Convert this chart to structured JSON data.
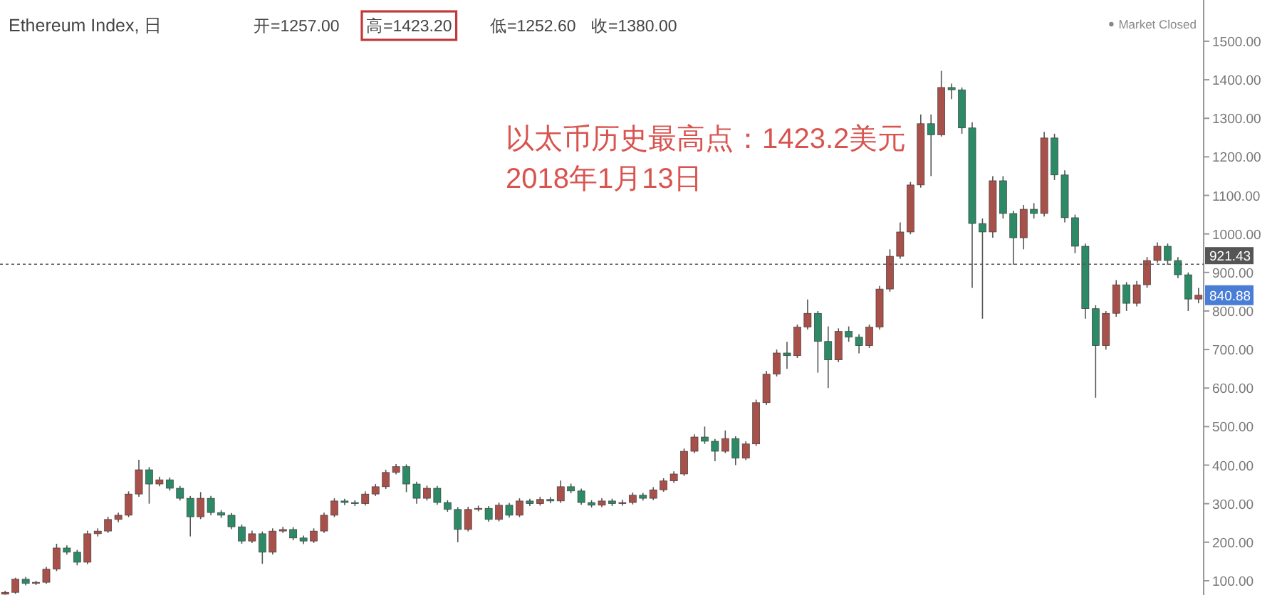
{
  "chart_data": {
    "type": "candlestick",
    "title": "Ethereum Index, 日",
    "categories": [
      null,
      null,
      null,
      null,
      null,
      null,
      null,
      null,
      null,
      null,
      null,
      null,
      null,
      null,
      null,
      null,
      null,
      null,
      null,
      null,
      null,
      null,
      null,
      null,
      null,
      null,
      null,
      null,
      null,
      null,
      null,
      null,
      null,
      null,
      null,
      null,
      null,
      null,
      null,
      null,
      null,
      null,
      null,
      null,
      null,
      null,
      null,
      null,
      null,
      null,
      null,
      null,
      null,
      null,
      null,
      null,
      null,
      null,
      null,
      null,
      null,
      null,
      null,
      null,
      null,
      null,
      null,
      null,
      null,
      null,
      null,
      null,
      null,
      null,
      null,
      null,
      null,
      null,
      null,
      null,
      null,
      null,
      null,
      null,
      null,
      null,
      null,
      null,
      null,
      null,
      null,
      null,
      null,
      null,
      null,
      null,
      null,
      null,
      null,
      null,
      null,
      null,
      null,
      null,
      null,
      null,
      null,
      null,
      null,
      null,
      null,
      null,
      null,
      null,
      null,
      null,
      null
    ],
    "ohlc": [
      [
        65,
        74,
        64,
        70
      ],
      [
        70,
        108,
        66,
        104
      ],
      [
        104,
        110,
        88,
        93
      ],
      [
        93,
        100,
        89,
        96
      ],
      [
        96,
        136,
        92,
        130
      ],
      [
        130,
        196,
        125,
        185
      ],
      [
        185,
        192,
        168,
        174
      ],
      [
        174,
        180,
        140,
        148
      ],
      [
        148,
        230,
        143,
        222
      ],
      [
        222,
        236,
        215,
        229
      ],
      [
        229,
        266,
        224,
        259
      ],
      [
        259,
        277,
        252,
        270
      ],
      [
        270,
        332,
        265,
        325
      ],
      [
        325,
        414,
        318,
        388
      ],
      [
        388,
        395,
        300,
        351
      ],
      [
        351,
        370,
        345,
        362
      ],
      [
        362,
        368,
        334,
        340
      ],
      [
        340,
        346,
        308,
        314
      ],
      [
        314,
        320,
        215,
        266
      ],
      [
        266,
        330,
        260,
        314
      ],
      [
        314,
        320,
        270,
        277
      ],
      [
        277,
        283,
        263,
        270
      ],
      [
        270,
        276,
        234,
        240
      ],
      [
        240,
        246,
        196,
        203
      ],
      [
        203,
        230,
        198,
        222
      ],
      [
        222,
        228,
        144,
        174
      ],
      [
        174,
        236,
        168,
        229
      ],
      [
        229,
        240,
        224,
        233
      ],
      [
        233,
        239,
        205,
        211
      ],
      [
        211,
        217,
        195,
        203
      ],
      [
        203,
        236,
        198,
        229
      ],
      [
        229,
        277,
        224,
        270
      ],
      [
        270,
        314,
        265,
        307
      ],
      [
        307,
        313,
        296,
        303
      ],
      [
        303,
        309,
        294,
        300
      ],
      [
        300,
        332,
        295,
        325
      ],
      [
        325,
        351,
        320,
        344
      ],
      [
        344,
        388,
        338,
        381
      ],
      [
        381,
        403,
        376,
        396
      ],
      [
        396,
        402,
        330,
        351
      ],
      [
        351,
        357,
        300,
        314
      ],
      [
        314,
        347,
        308,
        340
      ],
      [
        340,
        346,
        297,
        303
      ],
      [
        303,
        309,
        279,
        285
      ],
      [
        285,
        291,
        200,
        233
      ],
      [
        233,
        292,
        228,
        285
      ],
      [
        285,
        295,
        280,
        288
      ],
      [
        288,
        294,
        253,
        259
      ],
      [
        259,
        303,
        254,
        296
      ],
      [
        296,
        302,
        264,
        270
      ],
      [
        270,
        314,
        265,
        307
      ],
      [
        307,
        313,
        294,
        300
      ],
      [
        300,
        318,
        295,
        311
      ],
      [
        311,
        317,
        301,
        307
      ],
      [
        307,
        360,
        302,
        344
      ],
      [
        344,
        352,
        327,
        333
      ],
      [
        333,
        339,
        297,
        303
      ],
      [
        303,
        309,
        290,
        296
      ],
      [
        296,
        314,
        291,
        307
      ],
      [
        307,
        313,
        294,
        300
      ],
      [
        300,
        310,
        295,
        303
      ],
      [
        303,
        329,
        298,
        322
      ],
      [
        322,
        328,
        308,
        314
      ],
      [
        314,
        343,
        309,
        336
      ],
      [
        336,
        366,
        331,
        359
      ],
      [
        359,
        384,
        354,
        377
      ],
      [
        377,
        443,
        372,
        436
      ],
      [
        436,
        480,
        431,
        473
      ],
      [
        473,
        500,
        455,
        462
      ],
      [
        462,
        468,
        410,
        436
      ],
      [
        436,
        490,
        431,
        469
      ],
      [
        469,
        475,
        400,
        418
      ],
      [
        418,
        462,
        413,
        455
      ],
      [
        455,
        570,
        450,
        562
      ],
      [
        562,
        645,
        556,
        636
      ],
      [
        636,
        700,
        630,
        691
      ],
      [
        691,
        720,
        650,
        684
      ],
      [
        684,
        765,
        678,
        758
      ],
      [
        758,
        830,
        752,
        794
      ],
      [
        794,
        800,
        640,
        721
      ],
      [
        721,
        760,
        600,
        673
      ],
      [
        673,
        755,
        667,
        747
      ],
      [
        747,
        760,
        720,
        732
      ],
      [
        732,
        740,
        690,
        710
      ],
      [
        710,
        765,
        704,
        758
      ],
      [
        758,
        865,
        752,
        857
      ],
      [
        857,
        960,
        850,
        942
      ],
      [
        942,
        1030,
        935,
        1005
      ],
      [
        1005,
        1135,
        999,
        1127
      ],
      [
        1127,
        1310,
        1120,
        1286
      ],
      [
        1286,
        1310,
        1150,
        1257
      ],
      [
        1257,
        1423.2,
        1252.6,
        1380
      ],
      [
        1380,
        1390,
        1350,
        1374
      ],
      [
        1374,
        1380,
        1260,
        1275
      ],
      [
        1275,
        1290,
        860,
        1027
      ],
      [
        1027,
        1040,
        780,
        1005
      ],
      [
        1005,
        1150,
        990,
        1138
      ],
      [
        1138,
        1150,
        1040,
        1053
      ],
      [
        1053,
        1060,
        920,
        990
      ],
      [
        990,
        1075,
        960,
        1064
      ],
      [
        1064,
        1080,
        1040,
        1053
      ],
      [
        1053,
        1265,
        1045,
        1249
      ],
      [
        1249,
        1260,
        1140,
        1153
      ],
      [
        1153,
        1165,
        1030,
        1042
      ],
      [
        1042,
        1050,
        950,
        968
      ],
      [
        968,
        975,
        780,
        806
      ],
      [
        806,
        815,
        575,
        710
      ],
      [
        710,
        800,
        700,
        794
      ],
      [
        794,
        880,
        785,
        868
      ],
      [
        868,
        875,
        800,
        820
      ],
      [
        820,
        878,
        812,
        868
      ],
      [
        868,
        940,
        860,
        931
      ],
      [
        931,
        978,
        925,
        968
      ],
      [
        968,
        975,
        920,
        931
      ],
      [
        931,
        940,
        885,
        894
      ],
      [
        894,
        900,
        800,
        831
      ],
      [
        831,
        860,
        820,
        841
      ]
    ],
    "ylim": [
      63,
      1607
    ],
    "yticks": [
      {
        "value": 100,
        "label": "100.00"
      },
      {
        "value": 200,
        "label": "200.00"
      },
      {
        "value": 300,
        "label": "300.00"
      },
      {
        "value": 400,
        "label": "400.00"
      },
      {
        "value": 500,
        "label": "500.00"
      },
      {
        "value": 600,
        "label": "600.00"
      },
      {
        "value": 700,
        "label": "700.00"
      },
      {
        "value": 800,
        "label": "800.00"
      },
      {
        "value": 900,
        "label": "900.00"
      },
      {
        "value": 1000,
        "label": "1000.00"
      },
      {
        "value": 1100,
        "label": "1100.00"
      },
      {
        "value": 1200,
        "label": "1200.00"
      },
      {
        "value": 1300,
        "label": "1300.00"
      },
      {
        "value": 1400,
        "label": "1400.00"
      },
      {
        "value": 1500,
        "label": "1500.00"
      }
    ],
    "ref_lines": [
      {
        "axis": "y",
        "value": 921.43,
        "label": "921.43",
        "color": "#555555",
        "line_style": "dotted"
      }
    ],
    "annotations": [
      "开=1257.00",
      "高=1423.20",
      "低=1252.60",
      "收=1380.00",
      "Market Closed",
      "以太币历史最高点：1423.2美元\n2018年1月13日",
      {
        "text": "840.88",
        "y": 840.88
      }
    ]
  }
}
